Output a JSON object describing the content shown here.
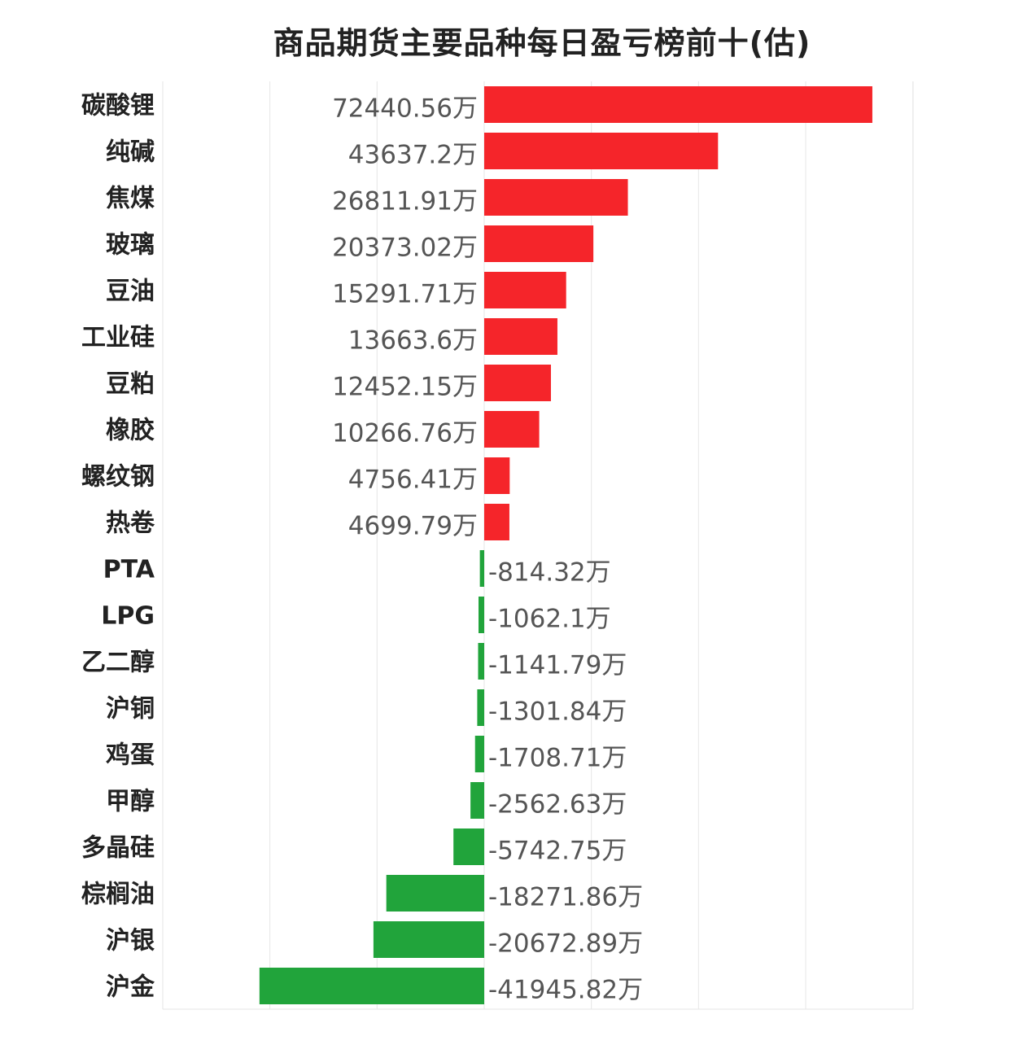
{
  "chart_data": {
    "type": "bar",
    "orientation": "horizontal",
    "title": "商品期货主要品种每日盈亏榜前十(估)",
    "unit_suffix": "万",
    "categories": [
      "碳酸锂",
      "纯碱",
      "焦煤",
      "玻璃",
      "豆油",
      "工业硅",
      "豆粕",
      "橡胶",
      "螺纹钢",
      "热卷",
      "PTA",
      "LPG",
      "乙二醇",
      "沪铜",
      "鸡蛋",
      "甲醇",
      "多晶硅",
      "棕榈油",
      "沪银",
      "沪金"
    ],
    "values": [
      72440.56,
      43637.2,
      26811.91,
      20373.02,
      15291.71,
      13663.6,
      12452.15,
      10266.76,
      4756.41,
      4699.79,
      -814.32,
      -1062.1,
      -1141.79,
      -1301.84,
      -1708.71,
      -2562.63,
      -5742.75,
      -18271.86,
      -20672.89,
      -41945.82
    ],
    "value_labels": [
      "72440.56万",
      "43637.2万",
      "26811.91万",
      "20373.02万",
      "15291.71万",
      "13663.6万",
      "12452.15万",
      "10266.76万",
      "4756.41万",
      "4699.79万",
      "-814.32万",
      "-1062.1万",
      "-1141.79万",
      "-1301.84万",
      "-1708.71万",
      "-2562.63万",
      "-5742.75万",
      "-18271.86万",
      "-20672.89万",
      "-41945.82万"
    ],
    "xlim": [
      -60000,
      80000
    ],
    "grid": true,
    "colors": {
      "positive": "#f5252a",
      "negative": "#21a43b",
      "grid": "#e6e6e6"
    }
  }
}
